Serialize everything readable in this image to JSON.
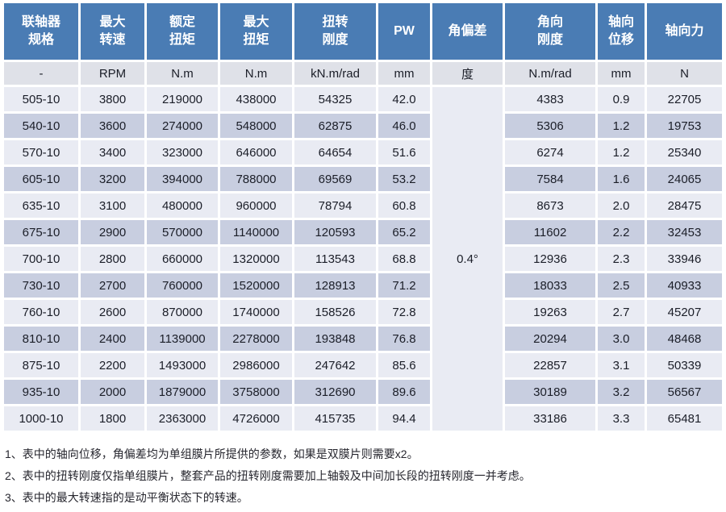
{
  "table": {
    "columns": [
      {
        "id": "spec",
        "label": "联轴器\n规格",
        "unit": "-"
      },
      {
        "id": "max-speed",
        "label": "最大\n转速",
        "unit": "RPM"
      },
      {
        "id": "rated-torque",
        "label": "额定\n扭矩",
        "unit": "N.m"
      },
      {
        "id": "max-torque",
        "label": "最大\n扭矩",
        "unit": "N.m"
      },
      {
        "id": "torsional-stiffness",
        "label": "扭转\n刚度",
        "unit": "kN.m/rad"
      },
      {
        "id": "pw",
        "label": "PW",
        "unit": "mm"
      },
      {
        "id": "angular-deviation",
        "label": "角偏差",
        "unit": "度"
      },
      {
        "id": "angular-stiffness",
        "label": "角向\n刚度",
        "unit": "N.m/rad"
      },
      {
        "id": "axial-displacement",
        "label": "轴向\n位移",
        "unit": "mm"
      },
      {
        "id": "axial-force",
        "label": "轴向力",
        "unit": "N"
      }
    ],
    "angular_deviation_merged": "0.4°",
    "rows": [
      [
        "505-10",
        "3800",
        "219000",
        "438000",
        "54325",
        "42.0",
        "4383",
        "0.9",
        "22705"
      ],
      [
        "540-10",
        "3600",
        "274000",
        "548000",
        "62875",
        "46.0",
        "5306",
        "1.2",
        "19753"
      ],
      [
        "570-10",
        "3400",
        "323000",
        "646000",
        "64654",
        "51.6",
        "6274",
        "1.2",
        "25340"
      ],
      [
        "605-10",
        "3200",
        "394000",
        "788000",
        "69569",
        "53.2",
        "7584",
        "1.6",
        "24065"
      ],
      [
        "635-10",
        "3100",
        "480000",
        "960000",
        "78794",
        "60.8",
        "8673",
        "2.0",
        "28475"
      ],
      [
        "675-10",
        "2900",
        "570000",
        "1140000",
        "120593",
        "65.2",
        "11602",
        "2.2",
        "32453"
      ],
      [
        "700-10",
        "2800",
        "660000",
        "1320000",
        "113543",
        "68.8",
        "12936",
        "2.3",
        "33946"
      ],
      [
        "730-10",
        "2700",
        "760000",
        "1520000",
        "128913",
        "71.2",
        "18033",
        "2.5",
        "40933"
      ],
      [
        "760-10",
        "2600",
        "870000",
        "1740000",
        "158526",
        "72.8",
        "19263",
        "2.7",
        "45207"
      ],
      [
        "810-10",
        "2400",
        "1139000",
        "2278000",
        "193848",
        "76.8",
        "20294",
        "3.0",
        "48468"
      ],
      [
        "875-10",
        "2200",
        "1493000",
        "2986000",
        "247642",
        "85.6",
        "22857",
        "3.1",
        "50339"
      ],
      [
        "935-10",
        "2000",
        "1879000",
        "3758000",
        "312690",
        "89.6",
        "30189",
        "3.2",
        "56567"
      ],
      [
        "1000-10",
        "1800",
        "2363000",
        "4726000",
        "415735",
        "94.4",
        "33186",
        "3.3",
        "65481"
      ]
    ]
  },
  "footnotes": [
    "1、表中的轴向位移，角偏差均为单组膜片所提供的参数，如果是双膜片则需要x2。",
    "2、表中的扭转刚度仅指单组膜片，整套产品的扭转刚度需要加上轴毂及中间加长段的扭转刚度一并考虑。",
    "3、表中的最大转速指的是动平衡状态下的转速。"
  ],
  "colors": {
    "header_bg": "#4A7CB4",
    "header_text": "#FFFFFF",
    "unit_row_bg": "#DFE1E8",
    "row_light_bg": "#E9EBF3",
    "row_dark_bg": "#C8CEE0",
    "merged_cell_bg": "#E6E8F0",
    "cell_text": "#1B1E28"
  }
}
